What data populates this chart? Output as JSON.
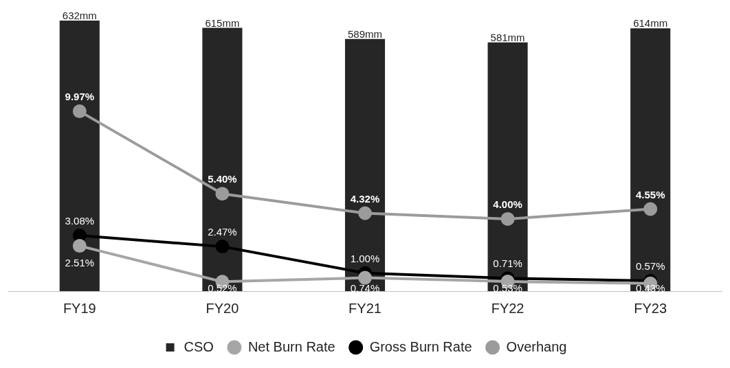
{
  "chart_data": {
    "type": "bar",
    "categories": [
      "FY19",
      "FY20",
      "FY21",
      "FY22",
      "FY23"
    ],
    "series": [
      {
        "name": "CSO",
        "color": "#262626",
        "values": [
          632,
          615,
          589,
          581,
          614
        ],
        "value_labels": [
          "632mm",
          "615mm",
          "589mm",
          "581mm",
          "614mm"
        ]
      },
      {
        "name": "Net Burn Rate",
        "type": "line",
        "axis": "y2",
        "color": "#a6a6a6",
        "values": [
          2.51,
          0.52,
          0.74,
          0.53,
          0.43
        ],
        "value_labels": [
          "2.51%",
          "0.52%",
          "0.74%",
          "0.53%",
          "0.43%"
        ]
      },
      {
        "name": "Gross Burn Rate",
        "type": "line",
        "axis": "y2",
        "color": "#000000",
        "values": [
          3.08,
          2.47,
          1.0,
          0.71,
          0.57
        ],
        "value_labels": [
          "3.08%",
          "2.47%",
          "1.00%",
          "0.71%",
          "0.57%"
        ]
      },
      {
        "name": "Overhang",
        "type": "line",
        "axis": "y2",
        "color": "#9b9b9b",
        "values": [
          9.97,
          5.4,
          4.32,
          4.0,
          4.55
        ],
        "value_labels": [
          "9.97%",
          "5.40%",
          "4.32%",
          "4.00%",
          "4.55%"
        ]
      }
    ],
    "ylim": [
      0,
      632
    ],
    "y2lim": [
      0,
      15
    ],
    "legend": "bottom",
    "marker": "circle",
    "grid": false
  }
}
